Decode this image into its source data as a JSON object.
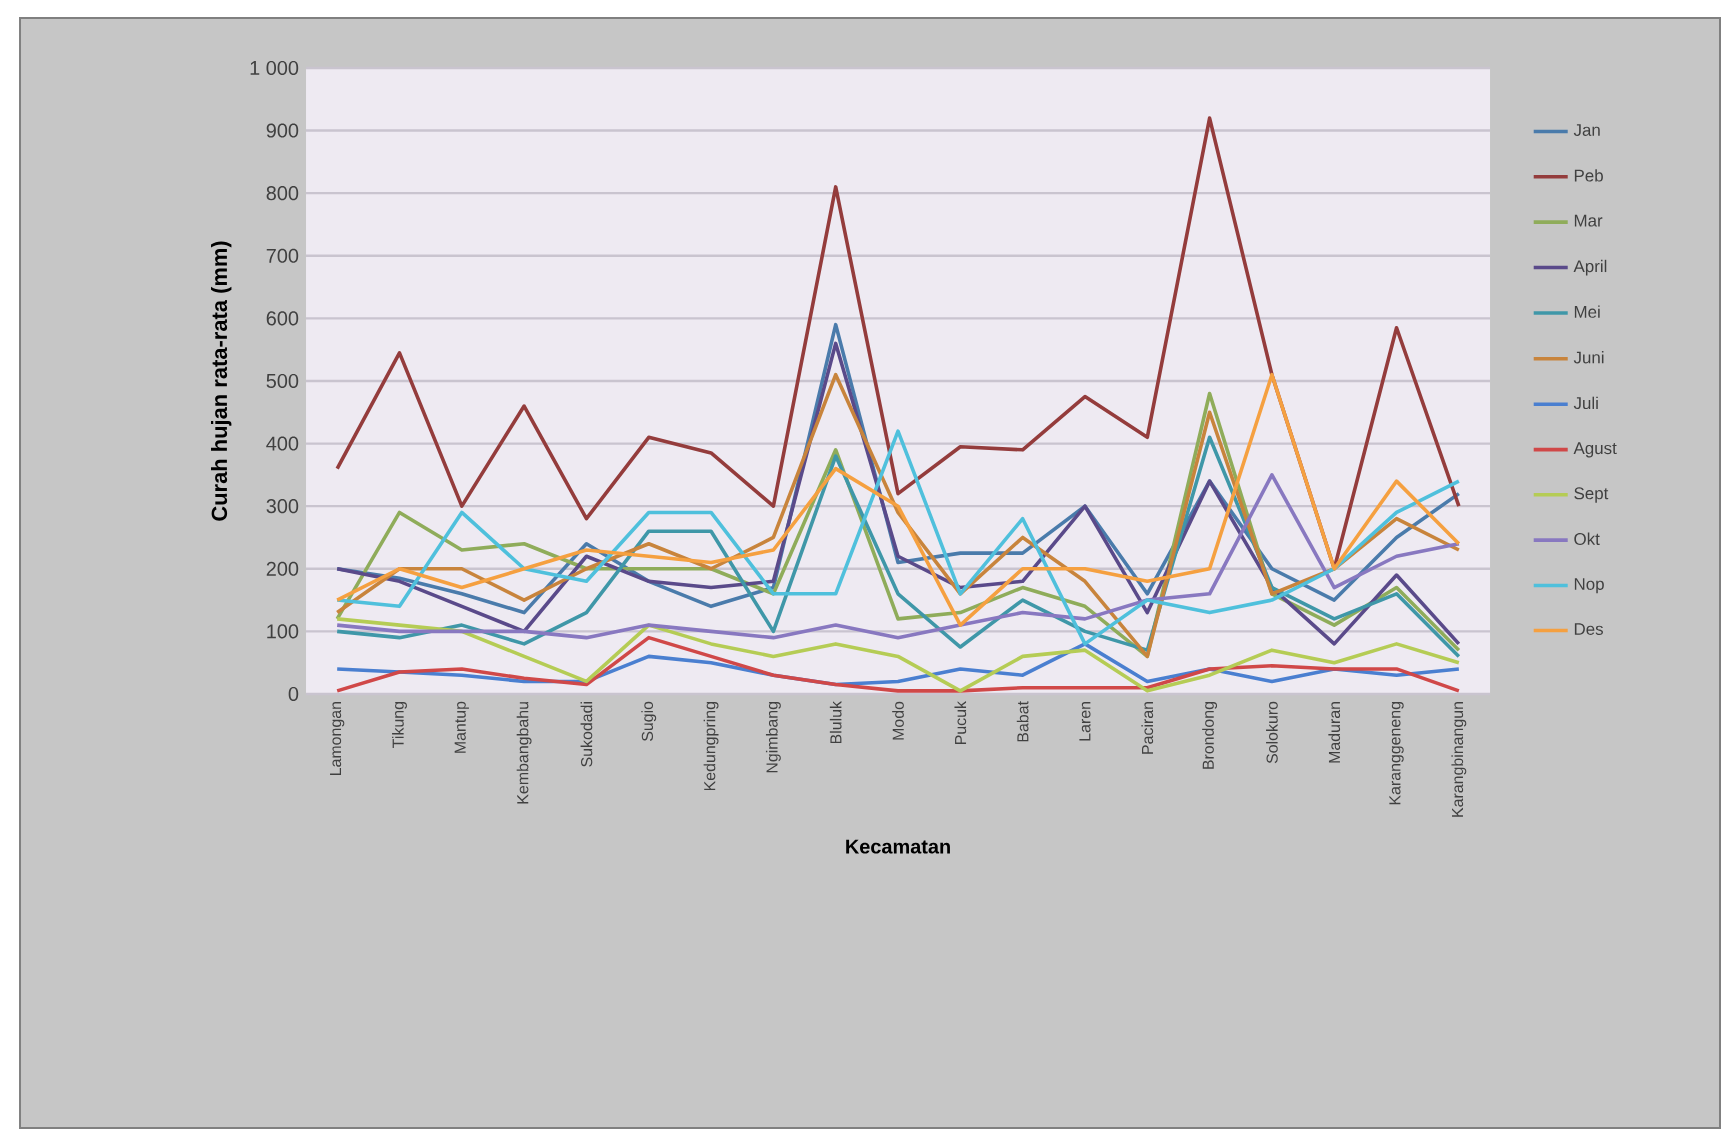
{
  "chart_data": {
    "type": "line",
    "xlabel": "Kecamatan",
    "ylabel": "Curah hujan rata-rata (mm)",
    "categories": [
      "Lamongan",
      "Tikung",
      "Mantup",
      "Kembangbahu",
      "Sukodadi",
      "Sugio",
      "Kedungpring",
      "Ngimbang",
      "Bluluk",
      "Modo",
      "Pucuk",
      "Babat",
      "Laren",
      "Paciran",
      "Brondong",
      "Solokuro",
      "Maduran",
      "Karanggeneng",
      "Karangbinangun"
    ],
    "ylim": [
      0,
      1000
    ],
    "yticks": [
      0,
      100,
      200,
      300,
      400,
      500,
      600,
      700,
      800,
      900,
      {
        "value": 1000,
        "label": "1 000"
      }
    ],
    "grid": "y",
    "legend": "right",
    "marker": "none",
    "series": [
      {
        "name": "Jan",
        "color": "#4a7bab",
        "values": [
          200,
          185,
          160,
          130,
          240,
          180,
          140,
          170,
          590,
          210,
          225,
          225,
          300,
          160,
          340,
          200,
          150,
          250,
          320
        ]
      },
      {
        "name": "Peb",
        "color": "#943c3c",
        "values": [
          360,
          545,
          300,
          460,
          280,
          410,
          385,
          300,
          810,
          320,
          395,
          390,
          475,
          410,
          920,
          510,
          200,
          585,
          300
        ]
      },
      {
        "name": "Mar",
        "color": "#8fac5a",
        "values": [
          120,
          290,
          230,
          240,
          200,
          200,
          200,
          160,
          390,
          120,
          130,
          170,
          140,
          60,
          480,
          160,
          110,
          170,
          70
        ]
      },
      {
        "name": "April",
        "color": "#5a4a8a",
        "values": [
          200,
          180,
          140,
          100,
          220,
          180,
          170,
          180,
          560,
          220,
          170,
          180,
          300,
          130,
          340,
          170,
          80,
          190,
          80
        ]
      },
      {
        "name": "Mei",
        "color": "#3f97a8",
        "values": [
          100,
          90,
          110,
          80,
          130,
          260,
          260,
          100,
          380,
          160,
          75,
          150,
          100,
          70,
          410,
          170,
          120,
          160,
          60
        ]
      },
      {
        "name": "Juni",
        "color": "#c8843c",
        "values": [
          130,
          200,
          200,
          150,
          200,
          240,
          200,
          250,
          510,
          290,
          160,
          250,
          180,
          60,
          450,
          160,
          200,
          280,
          230
        ]
      },
      {
        "name": "Juli",
        "color": "#4a7fd0",
        "values": [
          40,
          35,
          30,
          20,
          20,
          60,
          50,
          30,
          15,
          20,
          40,
          30,
          80,
          20,
          40,
          20,
          40,
          30,
          40
        ]
      },
      {
        "name": "Agust",
        "color": "#d04848",
        "values": [
          5,
          35,
          40,
          25,
          15,
          90,
          60,
          30,
          15,
          5,
          5,
          10,
          10,
          10,
          40,
          45,
          40,
          40,
          5
        ]
      },
      {
        "name": "Sept",
        "color": "#b5cc55",
        "values": [
          120,
          110,
          100,
          60,
          20,
          110,
          80,
          60,
          80,
          60,
          5,
          60,
          70,
          5,
          30,
          70,
          50,
          80,
          50
        ]
      },
      {
        "name": "Okt",
        "color": "#8878c0",
        "values": [
          110,
          100,
          100,
          100,
          90,
          110,
          100,
          90,
          110,
          90,
          110,
          130,
          120,
          150,
          160,
          350,
          170,
          220,
          240
        ]
      },
      {
        "name": "Nop",
        "color": "#4fc0dc",
        "values": [
          150,
          140,
          290,
          200,
          180,
          290,
          290,
          160,
          160,
          420,
          160,
          280,
          80,
          150,
          130,
          150,
          200,
          290,
          340
        ]
      },
      {
        "name": "Des",
        "color": "#f5a040",
        "values": [
          150,
          200,
          170,
          200,
          230,
          220,
          210,
          230,
          360,
          300,
          110,
          200,
          200,
          180,
          200,
          510,
          200,
          340,
          240
        ]
      }
    ]
  }
}
